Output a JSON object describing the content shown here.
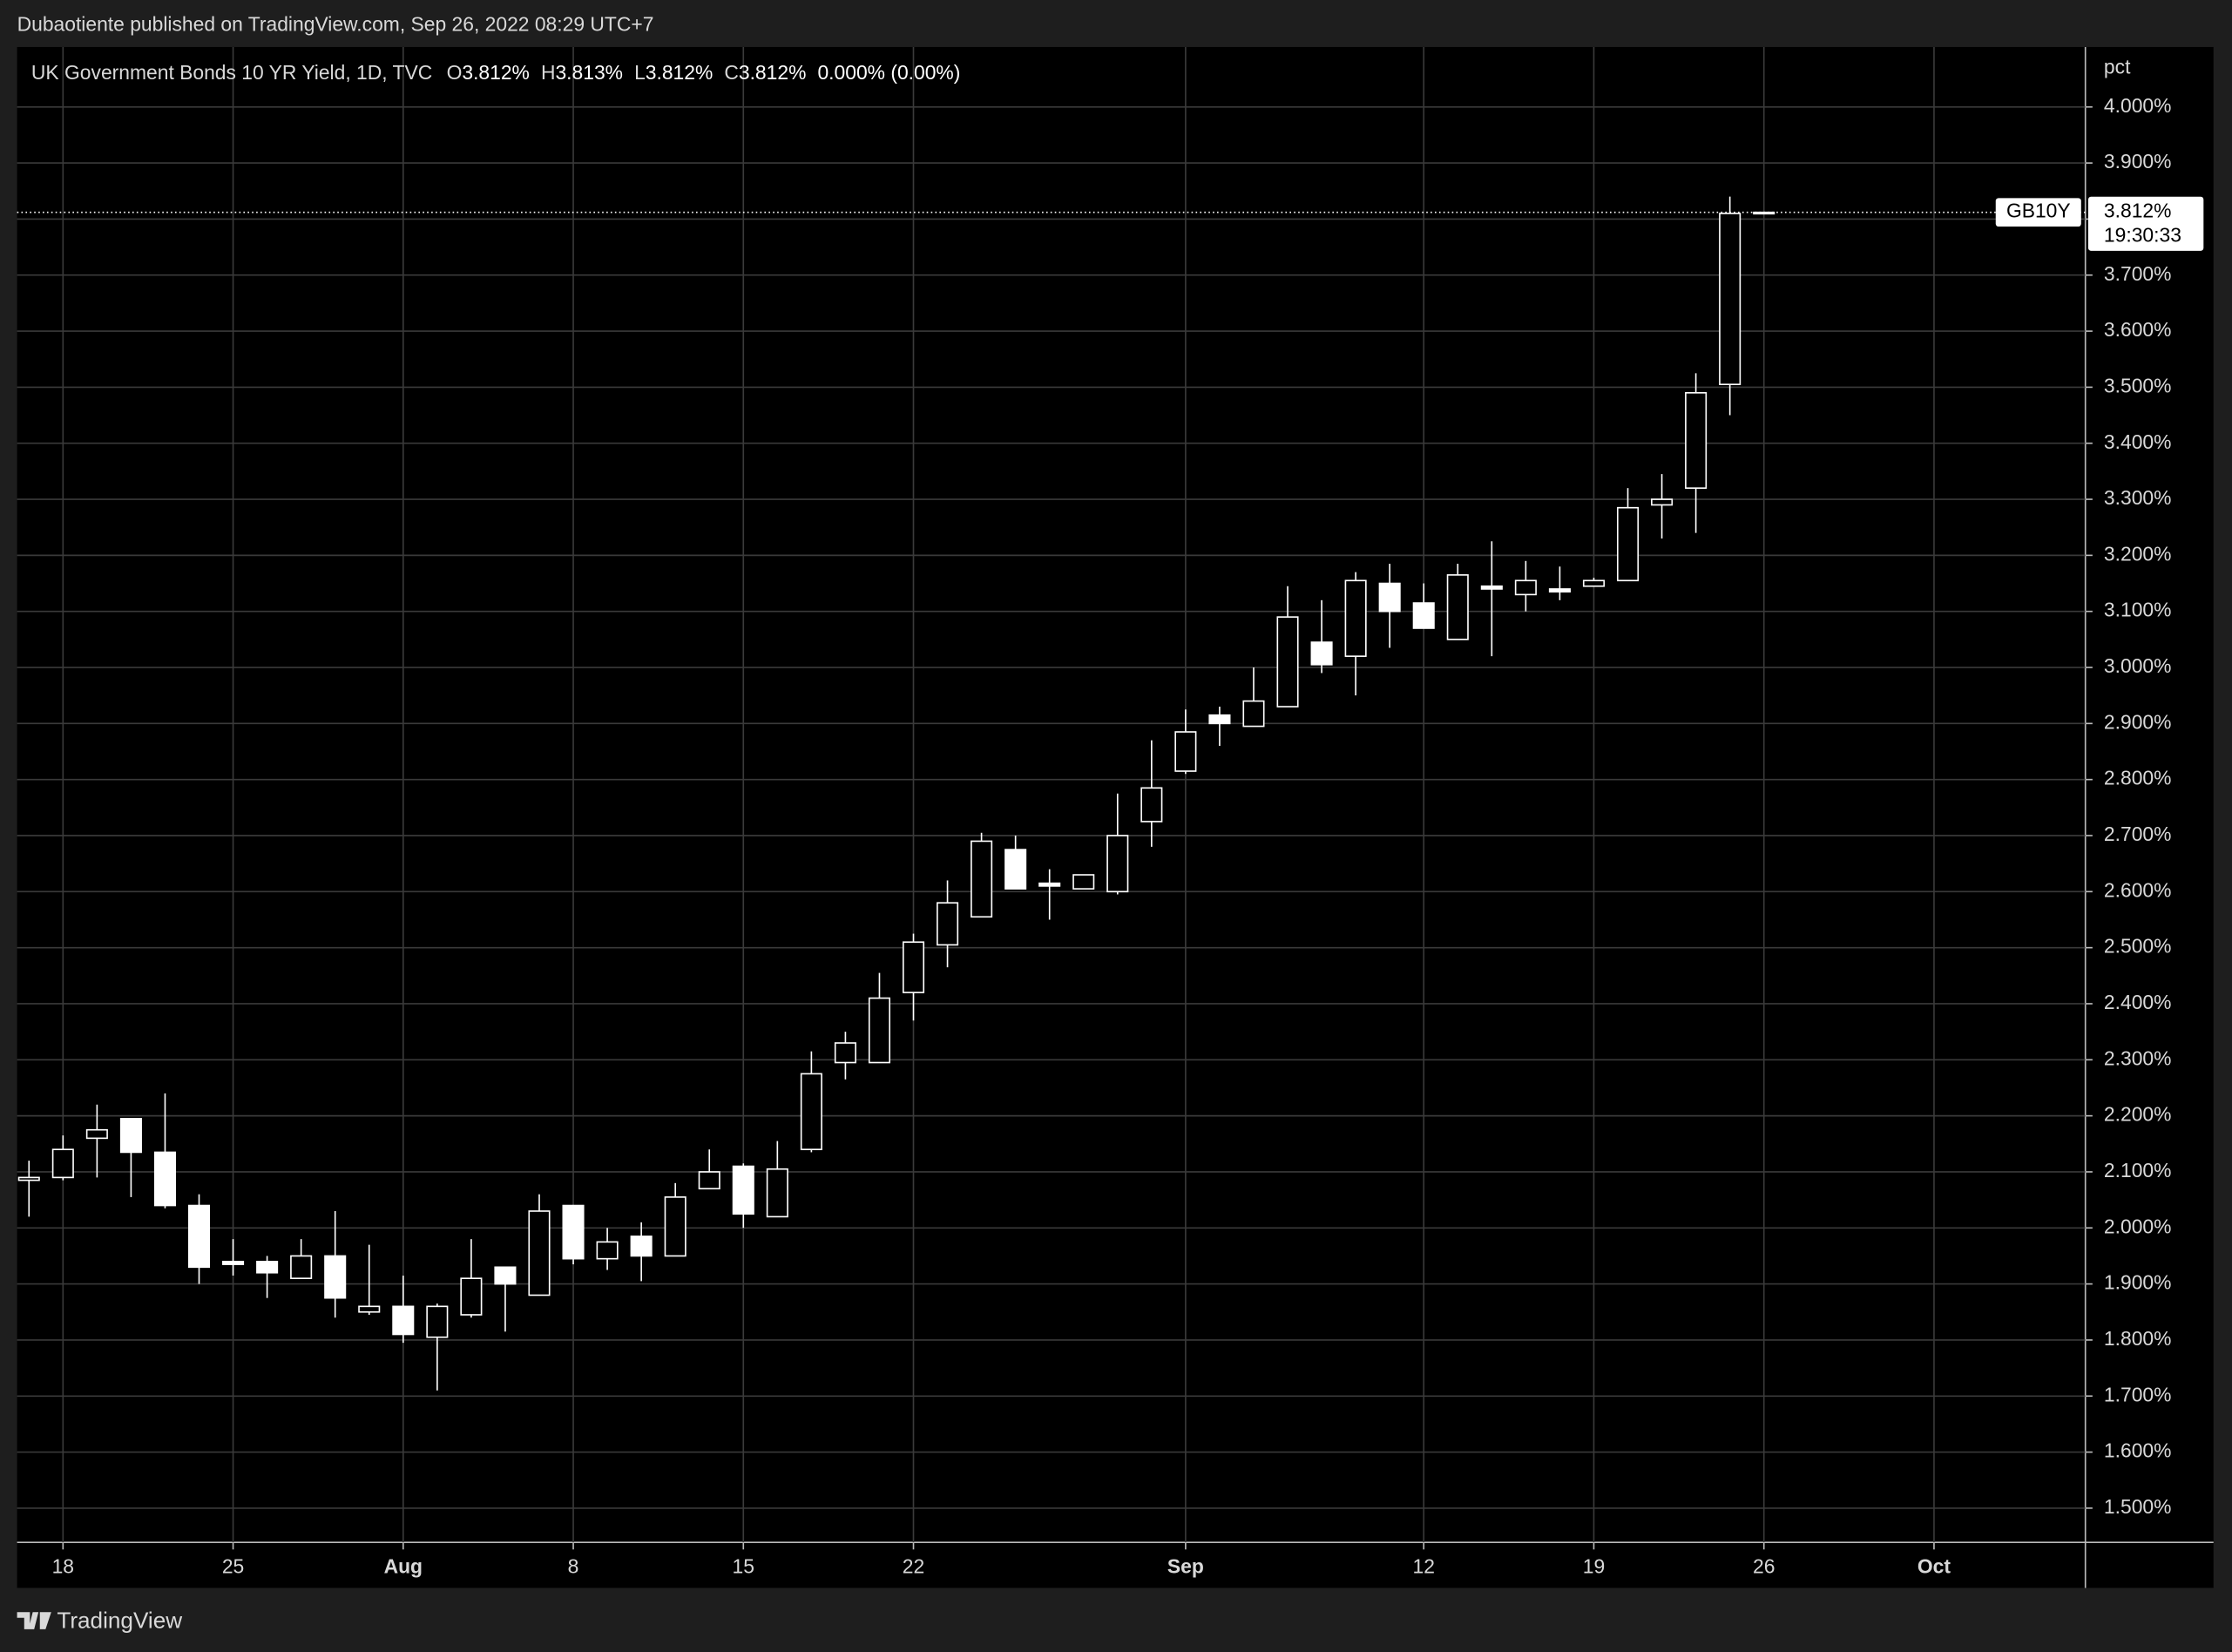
{
  "header": {
    "title": "Dubaotiente published on TradingView.com, Sep 26, 2022 08:29 UTC+7"
  },
  "footer": {
    "brand": "TradingView"
  },
  "chart_data": {
    "type": "candlestick",
    "legend": {
      "symbol": "UK Government Bonds 10 YR Yield, 1D, TVC",
      "items": [
        {
          "key": "O",
          "value": "3.812%"
        },
        {
          "key": "H",
          "value": "3.813%"
        },
        {
          "key": "L",
          "value": "3.812%"
        },
        {
          "key": "C",
          "value": "3.812%"
        }
      ],
      "change": "0.000% (0.00%)"
    },
    "y_unit": "pct",
    "last_price_label": {
      "symbol": "GB10Y",
      "price": "3.812%",
      "countdown": "19:30:33"
    },
    "up_color": "#ffffff",
    "down_color": "#ffffff",
    "open": [
      2.085,
      2.09,
      2.16,
      2.195,
      2.135,
      2.04,
      1.94,
      1.94,
      1.91,
      1.95,
      1.85,
      1.86,
      1.805,
      1.845,
      1.93,
      1.88,
      2.04,
      1.945,
      1.985,
      1.95,
      2.07,
      2.11,
      2.02,
      2.14,
      2.295,
      2.295,
      2.42,
      2.505,
      2.555,
      2.675,
      2.615,
      2.605,
      2.6,
      2.725,
      2.815,
      2.915,
      2.895,
      2.93,
      3.045,
      3.02,
      3.15,
      3.115,
      3.05,
      3.145,
      3.13,
      3.14,
      3.145,
      3.155,
      3.29,
      3.32,
      3.505,
      3.812
    ],
    "high": [
      2.12,
      2.165,
      2.22,
      2.195,
      2.24,
      2.06,
      1.98,
      1.95,
      1.98,
      2.03,
      1.97,
      1.915,
      1.865,
      1.98,
      1.93,
      2.06,
      2.04,
      2.0,
      2.01,
      2.08,
      2.14,
      2.115,
      2.155,
      2.315,
      2.35,
      2.455,
      2.525,
      2.62,
      2.705,
      2.7,
      2.64,
      2.63,
      2.775,
      2.87,
      2.925,
      2.93,
      3.0,
      3.145,
      3.12,
      3.17,
      3.185,
      3.15,
      3.185,
      3.225,
      3.19,
      3.18,
      3.16,
      3.32,
      3.345,
      3.525,
      3.84,
      3.813
    ],
    "low": [
      2.02,
      2.085,
      2.09,
      2.055,
      2.035,
      1.9,
      1.915,
      1.875,
      1.91,
      1.84,
      1.845,
      1.795,
      1.71,
      1.84,
      1.815,
      1.88,
      1.935,
      1.925,
      1.905,
      1.95,
      2.07,
      2.0,
      2.02,
      2.135,
      2.265,
      2.295,
      2.37,
      2.465,
      2.555,
      2.605,
      2.55,
      2.605,
      2.595,
      2.68,
      2.81,
      2.86,
      2.895,
      2.93,
      2.99,
      2.95,
      3.035,
      3.07,
      3.05,
      3.02,
      3.1,
      3.12,
      3.145,
      3.155,
      3.23,
      3.24,
      3.45,
      3.812
    ],
    "close": [
      2.09,
      2.14,
      2.175,
      2.135,
      2.04,
      1.93,
      1.935,
      1.92,
      1.95,
      1.875,
      1.86,
      1.81,
      1.86,
      1.91,
      1.9,
      2.03,
      1.945,
      1.975,
      1.95,
      2.055,
      2.1,
      2.025,
      2.105,
      2.275,
      2.33,
      2.41,
      2.51,
      2.58,
      2.69,
      2.605,
      2.61,
      2.63,
      2.7,
      2.785,
      2.885,
      2.9,
      2.94,
      3.09,
      3.005,
      3.155,
      3.1,
      3.07,
      3.165,
      3.14,
      3.155,
      3.135,
      3.155,
      3.285,
      3.3,
      3.49,
      3.81,
      3.812
    ],
    "xlim": [
      -0.35,
      60.45
    ],
    "xticks": [
      {
        "value": 1,
        "label": "18"
      },
      {
        "value": 6,
        "label": "25"
      },
      {
        "value": 11,
        "label": "Aug"
      },
      {
        "value": 16,
        "label": "8"
      },
      {
        "value": 21,
        "label": "15"
      },
      {
        "value": 26,
        "label": "22"
      },
      {
        "value": 34,
        "label": "Sep"
      },
      {
        "value": 41,
        "label": "12"
      },
      {
        "value": 46,
        "label": "19"
      },
      {
        "value": 51,
        "label": "26"
      },
      {
        "value": 56,
        "label": "Oct"
      }
    ],
    "ylim": [
      1.439,
      4.107
    ],
    "yticks": [
      {
        "value": 1.5,
        "label": "1.500%"
      },
      {
        "value": 1.6,
        "label": "1.600%"
      },
      {
        "value": 1.7,
        "label": "1.700%"
      },
      {
        "value": 1.8,
        "label": "1.800%"
      },
      {
        "value": 1.9,
        "label": "1.900%"
      },
      {
        "value": 2.0,
        "label": "2.000%"
      },
      {
        "value": 2.1,
        "label": "2.100%"
      },
      {
        "value": 2.2,
        "label": "2.200%"
      },
      {
        "value": 2.3,
        "label": "2.300%"
      },
      {
        "value": 2.4,
        "label": "2.400%"
      },
      {
        "value": 2.5,
        "label": "2.500%"
      },
      {
        "value": 2.6,
        "label": "2.600%"
      },
      {
        "value": 2.7,
        "label": "2.700%"
      },
      {
        "value": 2.8,
        "label": "2.800%"
      },
      {
        "value": 2.9,
        "label": "2.900%"
      },
      {
        "value": 3.0,
        "label": "3.000%"
      },
      {
        "value": 3.1,
        "label": "3.100%"
      },
      {
        "value": 3.2,
        "label": "3.200%"
      },
      {
        "value": 3.3,
        "label": "3.300%"
      },
      {
        "value": 3.4,
        "label": "3.400%"
      },
      {
        "value": 3.5,
        "label": "3.500%"
      },
      {
        "value": 3.6,
        "label": "3.600%"
      },
      {
        "value": 3.7,
        "label": "3.700%"
      },
      {
        "value": 3.8,
        "label": "3.800%"
      },
      {
        "value": 3.9,
        "label": "3.900%"
      },
      {
        "value": 4.0,
        "label": "4.000%"
      }
    ],
    "grid": true
  }
}
